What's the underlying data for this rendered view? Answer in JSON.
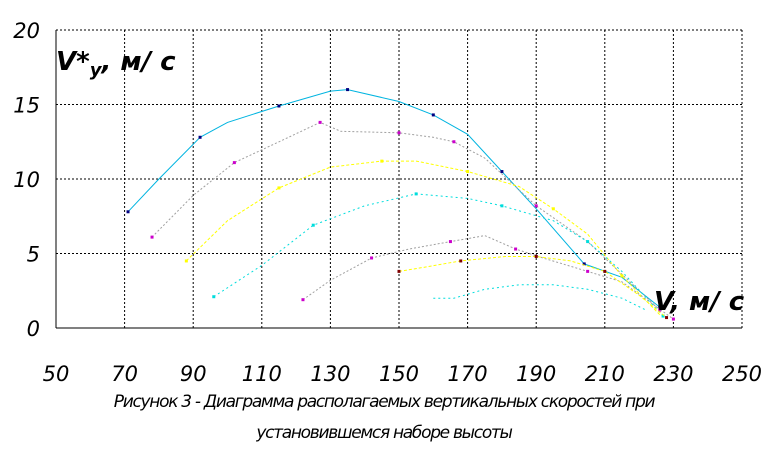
{
  "chart_data": {
    "type": "line",
    "ylabel_main": "V*",
    "ylabel_sub": "y",
    "ylabel_unit": ", м/ с",
    "xlabel": "V, м/ с",
    "xlim": [
      50,
      250
    ],
    "ylim": [
      0,
      20
    ],
    "xticks": [
      50,
      70,
      90,
      110,
      130,
      150,
      170,
      190,
      210,
      230,
      250
    ],
    "yticks": [
      0,
      5,
      10,
      15,
      20
    ],
    "grid": true,
    "series": [
      {
        "color": "#00b4e0",
        "dash": "",
        "marker": "#000080",
        "x": [
          71,
          80,
          92,
          100,
          115,
          130,
          135,
          150,
          160,
          170,
          180,
          190,
          204,
          215,
          226
        ],
        "y": [
          7.8,
          10.0,
          12.8,
          13.8,
          14.9,
          15.9,
          16.0,
          15.2,
          14.3,
          13.0,
          10.5,
          8.0,
          4.3,
          3.4,
          1.4
        ]
      },
      {
        "color": "#a0a0a0",
        "dash": "2,2",
        "marker": "#cc00cc",
        "x": [
          78,
          90,
          102,
          115,
          127,
          133,
          150,
          160,
          166,
          175,
          190,
          205,
          226
        ],
        "y": [
          6.1,
          8.9,
          11.1,
          12.5,
          13.8,
          13.2,
          13.1,
          12.8,
          12.5,
          11.4,
          8.2,
          5.8,
          1.2
        ]
      },
      {
        "color": "#ffff00",
        "dash": "3,2",
        "marker": "#ffff00",
        "x": [
          88,
          100,
          115,
          130,
          145,
          155,
          170,
          185,
          195,
          205,
          215,
          226
        ],
        "y": [
          4.5,
          7.2,
          9.4,
          10.8,
          11.2,
          11.2,
          10.5,
          9.5,
          8.0,
          6.3,
          3.5,
          0.9
        ]
      },
      {
        "color": "#00dddd",
        "dash": "2,3",
        "marker": "#00dddd",
        "x": [
          96,
          110,
          125,
          140,
          155,
          170,
          180,
          195,
          205,
          215,
          227
        ],
        "y": [
          2.1,
          4.2,
          6.9,
          8.2,
          9.0,
          8.7,
          8.2,
          7.2,
          5.8,
          3.8,
          0.8
        ]
      },
      {
        "color": "#a0a0a0",
        "dash": "2,2",
        "marker": "#cc00cc",
        "x": [
          122,
          130,
          142,
          153,
          165,
          175,
          184,
          192,
          205,
          215,
          230
        ],
        "y": [
          1.9,
          3.2,
          4.7,
          5.3,
          5.8,
          6.2,
          5.3,
          4.7,
          3.8,
          3.1,
          0.6
        ]
      },
      {
        "color": "#ffff00",
        "dash": "3,2",
        "marker": "#800000",
        "x": [
          150,
          158,
          168,
          181,
          190,
          200,
          210,
          220,
          228
        ],
        "y": [
          3.8,
          4.1,
          4.5,
          4.8,
          4.8,
          4.5,
          3.8,
          2.2,
          0.7
        ]
      },
      {
        "color": "#00dddd",
        "dash": "2,3",
        "marker": "",
        "x": [
          160,
          166,
          175,
          185,
          195,
          205,
          215,
          222
        ],
        "y": [
          2.0,
          2.0,
          2.6,
          2.9,
          2.9,
          2.6,
          2.0,
          1.2
        ]
      }
    ]
  },
  "caption": {
    "line1": "Рисунок 3 - Диаграмма располагаемых вертикальных скоростей при",
    "line2": "установившемся наборе высоты"
  }
}
